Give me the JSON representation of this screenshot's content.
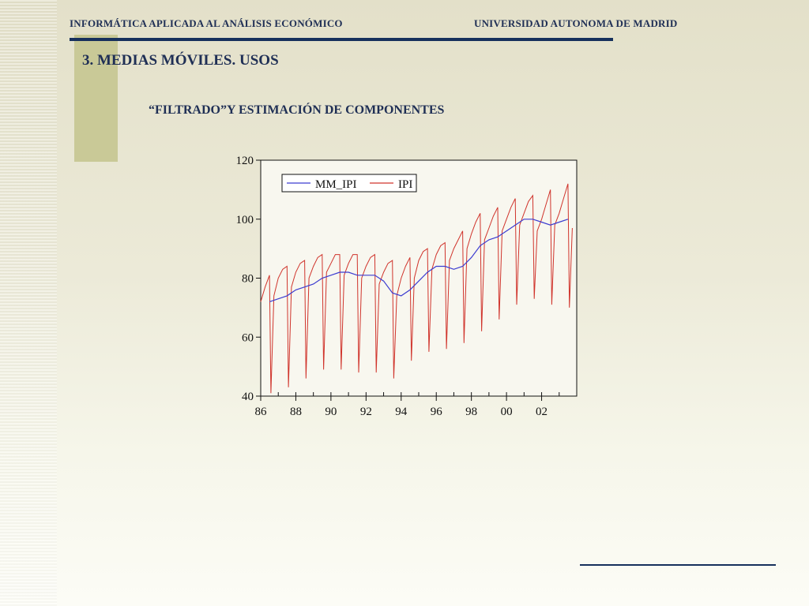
{
  "header": {
    "left": "INFORMÁTICA APLICADA AL ANÁLISIS ECONÓMICO",
    "right": "UNIVERSIDAD AUTONOMA DE MADRID"
  },
  "slide": {
    "title": "3. MEDIAS MÓVILES. USOS",
    "subtitle": "“FILTRADO”Y ESTIMACIÓN DE COMPONENTES"
  },
  "colors": {
    "mm_ipi": "#3c3cd0",
    "ipi": "#d0342c",
    "text": "#1f2f55"
  },
  "chart_data": {
    "type": "line",
    "title": "",
    "xlabel": "",
    "ylabel": "",
    "xlim": [
      1986,
      2004
    ],
    "ylim": [
      40,
      120
    ],
    "x_ticks": [
      "86",
      "88",
      "90",
      "92",
      "94",
      "96",
      "98",
      "00",
      "02"
    ],
    "x_tick_values": [
      1986,
      1988,
      1990,
      1992,
      1994,
      1996,
      1998,
      2000,
      2002
    ],
    "y_ticks": [
      40,
      60,
      80,
      100,
      120
    ],
    "legend_position": "top-left",
    "grid": false,
    "series": [
      {
        "name": "MM_IPI",
        "x": [
          1986.5,
          1987.0,
          1987.5,
          1988.0,
          1988.5,
          1989.0,
          1989.5,
          1990.0,
          1990.5,
          1991.0,
          1991.5,
          1992.0,
          1992.5,
          1993.0,
          1993.5,
          1994.0,
          1994.5,
          1995.0,
          1995.5,
          1996.0,
          1996.5,
          1997.0,
          1997.5,
          1998.0,
          1998.5,
          1999.0,
          1999.5,
          2000.0,
          2000.5,
          2001.0,
          2001.5,
          2002.0,
          2002.5,
          2003.0,
          2003.5
        ],
        "values": [
          72,
          73,
          74,
          76,
          77,
          78,
          80,
          81,
          82,
          82,
          81,
          81,
          81,
          79,
          75,
          74,
          76,
          79,
          82,
          84,
          84,
          83,
          84,
          87,
          91,
          93,
          94,
          96,
          98,
          100,
          100,
          99,
          98,
          99,
          100
        ]
      },
      {
        "name": "IPI",
        "x": [
          1986.0,
          1986.25,
          1986.5,
          1986.58,
          1986.75,
          1987.0,
          1987.25,
          1987.5,
          1987.58,
          1987.75,
          1988.0,
          1988.25,
          1988.5,
          1988.58,
          1988.75,
          1989.0,
          1989.25,
          1989.5,
          1989.58,
          1989.75,
          1990.0,
          1990.25,
          1990.5,
          1990.58,
          1990.75,
          1991.0,
          1991.25,
          1991.5,
          1991.58,
          1991.75,
          1992.0,
          1992.25,
          1992.5,
          1992.58,
          1992.75,
          1993.0,
          1993.25,
          1993.5,
          1993.58,
          1993.75,
          1994.0,
          1994.25,
          1994.5,
          1994.58,
          1994.75,
          1995.0,
          1995.25,
          1995.5,
          1995.58,
          1995.75,
          1996.0,
          1996.25,
          1996.5,
          1996.58,
          1996.75,
          1997.0,
          1997.25,
          1997.5,
          1997.58,
          1997.75,
          1998.0,
          1998.25,
          1998.5,
          1998.58,
          1998.75,
          1999.0,
          1999.25,
          1999.5,
          1999.58,
          1999.75,
          2000.0,
          2000.25,
          2000.5,
          2000.58,
          2000.75,
          2001.0,
          2001.25,
          2001.5,
          2001.58,
          2001.75,
          2002.0,
          2002.25,
          2002.5,
          2002.58,
          2002.75,
          2003.0,
          2003.25,
          2003.5,
          2003.58,
          2003.75
        ],
        "values": [
          72,
          77,
          81,
          41,
          74,
          80,
          83,
          84,
          43,
          77,
          82,
          85,
          86,
          46,
          80,
          84,
          87,
          88,
          49,
          82,
          85,
          88,
          88,
          49,
          81,
          85,
          88,
          88,
          48,
          80,
          84,
          87,
          88,
          48,
          78,
          82,
          85,
          86,
          46,
          74,
          80,
          84,
          87,
          52,
          80,
          86,
          89,
          90,
          55,
          83,
          88,
          91,
          92,
          56,
          86,
          90,
          93,
          96,
          58,
          90,
          95,
          99,
          102,
          62,
          93,
          97,
          101,
          104,
          66,
          96,
          100,
          104,
          107,
          71,
          98,
          102,
          106,
          108,
          73,
          96,
          100,
          105,
          110,
          71,
          98,
          102,
          107,
          112,
          70,
          97
        ]
      }
    ]
  }
}
